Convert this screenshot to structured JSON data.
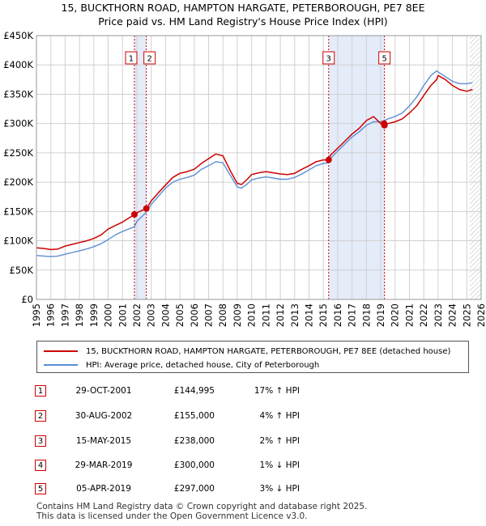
{
  "title_line1": "15, BUCKTHORN ROAD, HAMPTON HARGATE, PETERBOROUGH, PE7 8EE",
  "title_line2": "Price paid vs. HM Land Registry's House Price Index (HPI)",
  "legend": {
    "property": "15, BUCKTHORN ROAD, HAMPTON HARGATE, PETERBOROUGH, PE7 8EE (detached house)",
    "hpi": "HPI: Average price, detached house, City of Peterborough"
  },
  "colors": {
    "property": "#cc0000",
    "hpi": "#5b8fd4",
    "shade": "#e4ebf9"
  },
  "transactions": [
    {
      "num": "1",
      "date": "29-OCT-2001",
      "price": "£144,995",
      "hpi": "17% ↑ HPI"
    },
    {
      "num": "2",
      "date": "30-AUG-2002",
      "price": "£155,000",
      "hpi": "4% ↑ HPI"
    },
    {
      "num": "3",
      "date": "15-MAY-2015",
      "price": "£238,000",
      "hpi": "2% ↑ HPI"
    },
    {
      "num": "4",
      "date": "29-MAR-2019",
      "price": "£300,000",
      "hpi": "1% ↓ HPI"
    },
    {
      "num": "5",
      "date": "05-APR-2019",
      "price": "£297,000",
      "hpi": "3% ↓ HPI"
    }
  ],
  "footer_line1": "Contains HM Land Registry data © Crown copyright and database right 2025.",
  "footer_line2": "This data is licensed under the Open Government Licence v3.0.",
  "chart_data": {
    "type": "line",
    "xlim": [
      1995,
      2026
    ],
    "ylim": [
      0,
      450000
    ],
    "y_ticks": [
      0,
      50000,
      100000,
      150000,
      200000,
      250000,
      300000,
      350000,
      400000,
      450000
    ],
    "y_tick_labels": [
      "£0",
      "£50K",
      "£100K",
      "£150K",
      "£200K",
      "£250K",
      "£300K",
      "£350K",
      "£400K",
      "£450K"
    ],
    "x_ticks": [
      1995,
      1996,
      1997,
      1998,
      1999,
      2000,
      2001,
      2002,
      2003,
      2004,
      2005,
      2006,
      2007,
      2008,
      2009,
      2010,
      2011,
      2012,
      2013,
      2014,
      2015,
      2016,
      2017,
      2018,
      2019,
      2020,
      2021,
      2022,
      2023,
      2024,
      2025,
      2026
    ],
    "x_tick_labels": [
      "1995",
      "1996",
      "1997",
      "1998",
      "1999",
      "2000",
      "2001",
      "2002",
      "2003",
      "2004",
      "2005",
      "2006",
      "2007",
      "2008",
      "2009",
      "2010",
      "2011",
      "2012",
      "2013",
      "2014",
      "2015",
      "2016",
      "2017",
      "2018",
      "2019",
      "2020",
      "2021",
      "2022",
      "2023",
      "2024",
      "2025",
      "2026"
    ],
    "shaded_ranges": [
      [
        2001.83,
        2002.66
      ],
      [
        2015.37,
        2019.26
      ]
    ],
    "hatch_from": 2025.2,
    "series": [
      {
        "name": "15, BUCKTHORN ROAD, HAMPTON HARGATE, PETERBOROUGH, PE7 8EE (detached house)",
        "x": [
          1995,
          1995.5,
          1996,
          1996.5,
          1997,
          1997.5,
          1998,
          1998.5,
          1999,
          1999.5,
          2000,
          2000.5,
          2001,
          2001.83,
          2002,
          2002.66,
          2003,
          2003.5,
          2004,
          2004.5,
          2005,
          2005.5,
          2006,
          2006.5,
          2007,
          2007.5,
          2008,
          2008.5,
          2009,
          2009.3,
          2009.7,
          2010,
          2010.5,
          2011,
          2011.5,
          2012,
          2012.5,
          2013,
          2013.5,
          2014,
          2014.5,
          2015,
          2015.37,
          2015.5,
          2016,
          2016.5,
          2017,
          2017.5,
          2018,
          2018.5,
          2019,
          2019.26,
          2019.5,
          2020,
          2020.5,
          2021,
          2021.5,
          2022,
          2022.5,
          2022.9,
          2023,
          2023.5,
          2024,
          2024.5,
          2025,
          2025.4
        ],
        "values": [
          88000,
          87000,
          85000,
          86000,
          91000,
          94000,
          97000,
          100000,
          104000,
          110000,
          120000,
          126000,
          132000,
          144995,
          148000,
          155000,
          168000,
          182000,
          195000,
          208000,
          215000,
          218000,
          222000,
          232000,
          240000,
          248000,
          245000,
          220000,
          198000,
          196000,
          205000,
          213000,
          216000,
          218000,
          216000,
          214000,
          213000,
          215000,
          222000,
          228000,
          235000,
          238000,
          238000,
          246000,
          258000,
          270000,
          282000,
          292000,
          305000,
          312000,
          300000,
          297000,
          300000,
          303000,
          308000,
          318000,
          330000,
          348000,
          365000,
          375000,
          382000,
          375000,
          365000,
          358000,
          355000,
          358000
        ]
      },
      {
        "name": "HPI: Average price, detached house, City of Peterborough",
        "x": [
          1995,
          1995.5,
          1996,
          1996.5,
          1997,
          1997.5,
          1998,
          1998.5,
          1999,
          1999.5,
          2000,
          2000.5,
          2001,
          2001.83,
          2002,
          2002.66,
          2003,
          2003.5,
          2004,
          2004.5,
          2005,
          2005.5,
          2006,
          2006.5,
          2007,
          2007.5,
          2008,
          2008.5,
          2009,
          2009.3,
          2009.7,
          2010,
          2010.5,
          2011,
          2011.5,
          2012,
          2012.5,
          2013,
          2013.5,
          2014,
          2014.5,
          2015,
          2015.37,
          2015.5,
          2016,
          2016.5,
          2017,
          2017.5,
          2018,
          2018.5,
          2019,
          2019.26,
          2019.5,
          2020,
          2020.5,
          2021,
          2021.5,
          2022,
          2022.5,
          2022.9,
          2023,
          2023.5,
          2024,
          2024.5,
          2025,
          2025.4
        ],
        "values": [
          75000,
          74000,
          73000,
          74000,
          77000,
          80000,
          83000,
          86000,
          90000,
          95000,
          102000,
          110000,
          116000,
          124000,
          133000,
          149000,
          162000,
          176000,
          190000,
          200000,
          205000,
          208000,
          212000,
          222000,
          228000,
          235000,
          233000,
          212000,
          192000,
          190000,
          197000,
          204000,
          207000,
          209000,
          207000,
          205000,
          205000,
          208000,
          214000,
          221000,
          228000,
          232000,
          233000,
          240000,
          253000,
          265000,
          277000,
          286000,
          297000,
          303000,
          303000,
          305000,
          308000,
          312000,
          318000,
          330000,
          345000,
          365000,
          382000,
          390000,
          388000,
          380000,
          372000,
          368000,
          368000,
          370000
        ]
      }
    ],
    "sales": [
      {
        "label": "1",
        "x": 2001.83,
        "value": 144995
      },
      {
        "label": "2",
        "x": 2002.66,
        "value": 155000
      },
      {
        "label": "3",
        "x": 2015.37,
        "value": 238000
      },
      {
        "label": "4",
        "x": 2019.24,
        "value": 300000
      },
      {
        "label": "5",
        "x": 2019.26,
        "value": 297000
      }
    ],
    "markers": [
      {
        "label": "1",
        "x": 2001.83
      },
      {
        "label": "2",
        "x": 2002.66
      },
      {
        "label": "3",
        "x": 2015.37
      },
      {
        "label": "5",
        "x": 2019.26
      }
    ]
  }
}
